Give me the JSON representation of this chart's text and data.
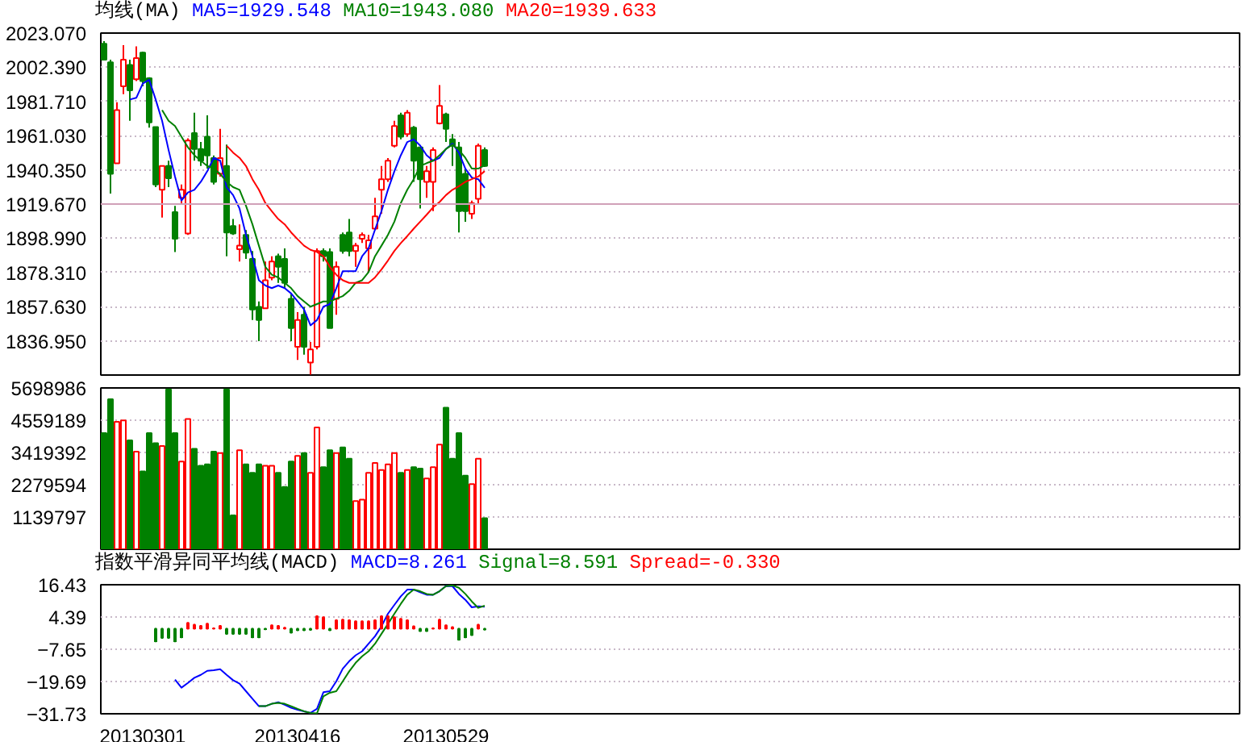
{
  "chart_data": [
    {
      "type": "candlestick",
      "title": "均线(MA)",
      "legend": "top",
      "grid": "y",
      "tick_labels": "y",
      "categories": [
        null,
        null,
        null,
        null,
        null,
        null,
        "20130301",
        null,
        null,
        null,
        null,
        null,
        null,
        null,
        null,
        null,
        null,
        null,
        null,
        null,
        null,
        null,
        null,
        null,
        null,
        null,
        null,
        null,
        null,
        null,
        "20130416",
        null,
        null,
        null,
        null,
        null,
        null,
        null,
        null,
        null,
        null,
        null,
        null,
        null,
        null,
        null,
        null,
        null,
        null,
        null,
        null,
        null,
        null,
        "20130529",
        null,
        null,
        null,
        null,
        null,
        null
      ],
      "ohlc": [
        [
          2016.6,
          2018.2,
          2007.0,
          2007.0
        ],
        [
          2005.4,
          2007.0,
          1926.0,
          1937.9
        ],
        [
          1944.3,
          1981.3,
          1944.3,
          1976.5
        ],
        [
          1990.9,
          2015.7,
          1986.1,
          2007.0
        ],
        [
          2003.8,
          2007.0,
          1970.0,
          1988.4
        ],
        [
          1995.1,
          2015.0,
          1994.1,
          2008.0
        ],
        [
          2011.2,
          2011.8,
          1990.9,
          1994.1
        ],
        [
          1995.8,
          1996.4,
          1965.9,
          1969.1
        ],
        [
          1966.2,
          1966.2,
          1929.9,
          1931.5
        ],
        [
          1928.3,
          1942.7,
          1911.5,
          1942.7
        ],
        [
          1942.7,
          1945.9,
          1929.9,
          1935.3
        ],
        [
          1914.8,
          1918.6,
          1890.6,
          1898.7
        ],
        [
          1923.4,
          1931.5,
          1920.2,
          1928.3
        ],
        [
          1901.9,
          1959.4,
          1901.0,
          1958.1
        ],
        [
          1962.6,
          1974.9,
          1945.9,
          1953.0
        ],
        [
          1953.0,
          1957.2,
          1942.7,
          1945.9
        ],
        [
          1960.4,
          1973.3,
          1941.1,
          1949.1
        ],
        [
          1947.5,
          1949.1,
          1931.5,
          1933.1
        ],
        [
          1937.9,
          1965.2,
          1936.3,
          1947.5
        ],
        [
          1942.7,
          1955.6,
          1888.1,
          1902.5
        ],
        [
          1906.4,
          1910.6,
          1901.0,
          1901.9
        ],
        [
          1892.3,
          1907.4,
          1884.9,
          1894.5
        ],
        [
          1901.0,
          1903.9,
          1886.5,
          1890.3
        ],
        [
          1886.5,
          1891.3,
          1849.5,
          1855.9
        ],
        [
          1857.5,
          1860.8,
          1836.7,
          1849.5
        ],
        [
          1856.6,
          1884.9,
          1856.6,
          1873.6
        ],
        [
          1875.2,
          1888.1,
          1873.6,
          1884.9
        ],
        [
          1888.1,
          1889.7,
          1872.0,
          1881.7
        ],
        [
          1886.5,
          1892.9,
          1868.8,
          1872.0
        ],
        [
          1862.4,
          1865.2,
          1836.7,
          1844.7
        ],
        [
          1833.4,
          1854.3,
          1825.4,
          1849.5
        ],
        [
          1852.7,
          1857.5,
          1828.6,
          1833.4
        ],
        [
          1823.8,
          1836.3,
          1816.5,
          1831.8
        ],
        [
          1833.4,
          1892.9,
          1831.8,
          1891.3
        ],
        [
          1891.3,
          1892.9,
          1884.9,
          1888.1
        ],
        [
          1890.6,
          1892.9,
          1844.7,
          1844.7
        ],
        [
          1862.4,
          1884.9,
          1852.7,
          1881.7
        ],
        [
          1901.0,
          1902.5,
          1889.7,
          1891.3
        ],
        [
          1902.5,
          1910.6,
          1888.1,
          1891.3
        ],
        [
          1891.3,
          1896.1,
          1881.7,
          1894.5
        ],
        [
          1898.7,
          1902.5,
          1896.1,
          1901.0
        ],
        [
          1892.9,
          1901.0,
          1878.5,
          1897.7
        ],
        [
          1904.8,
          1923.4,
          1903.9,
          1912.2
        ],
        [
          1928.3,
          1942.7,
          1913.8,
          1934.7
        ],
        [
          1934.7,
          1947.5,
          1933.1,
          1945.9
        ],
        [
          1954.9,
          1970.0,
          1953.9,
          1966.8
        ],
        [
          1973.3,
          1974.9,
          1958.8,
          1960.4
        ],
        [
          1962.0,
          1976.5,
          1960.4,
          1974.9
        ],
        [
          1965.9,
          1966.8,
          1933.1,
          1945.9
        ],
        [
          1953.9,
          1953.9,
          1917.0,
          1934.7
        ],
        [
          1933.1,
          1942.7,
          1923.4,
          1939.5
        ],
        [
          1933.1,
          1953.9,
          1915.4,
          1952.4
        ],
        [
          1968.4,
          1991.6,
          1967.8,
          1979.0
        ],
        [
          1973.9,
          1974.9,
          1957.2,
          1965.2
        ],
        [
          1958.8,
          1962.0,
          1942.7,
          1954.9
        ],
        [
          1953.9,
          1957.2,
          1902.5,
          1915.4
        ],
        [
          1937.9,
          1941.1,
          1909.0,
          1915.4
        ],
        [
          1913.8,
          1921.8,
          1910.6,
          1920.2
        ],
        [
          1922.8,
          1956.2,
          1920.2,
          1954.9
        ],
        [
          1952.4,
          1953.9,
          1942.1,
          1942.7
        ]
      ],
      "colors": [
        "#008000",
        "#008000",
        "#ff0000",
        "#ff0000",
        "#008000",
        "#ff0000",
        "#008000",
        "#008000",
        "#008000",
        "#ff0000",
        "#008000",
        "#008000",
        "#ff0000",
        "#ff0000",
        "#008000",
        "#008000",
        "#008000",
        "#008000",
        "#ff0000",
        "#008000",
        "#008000",
        "#ff0000",
        "#008000",
        "#008000",
        "#008000",
        "#ff0000",
        "#ff0000",
        "#008000",
        "#008000",
        "#008000",
        "#ff0000",
        "#008000",
        "#ff0000",
        "#ff0000",
        "#008000",
        "#008000",
        "#ff0000",
        "#008000",
        "#008000",
        "#ff0000",
        "#ff0000",
        "#ff0000",
        "#ff0000",
        "#ff0000",
        "#ff0000",
        "#ff0000",
        "#008000",
        "#ff0000",
        "#008000",
        "#008000",
        "#ff0000",
        "#ff0000",
        "#ff0000",
        "#008000",
        "#008000",
        "#008000",
        "#008000",
        "#ff0000",
        "#ff0000",
        "#008000"
      ],
      "series": [
        {
          "name": "MA5=1929.548",
          "type": "line",
          "color": "#0000ff",
          "values": [
            null,
            null,
            null,
            null,
            1982.9,
            1983.9,
            1992.5,
            1994.8,
            1982.9,
            1970.0,
            1952.4,
            1936.3,
            1921.8,
            1926.7,
            1928.3,
            1933.1,
            1939.5,
            1947.6,
            1945.9,
            1929.9,
            1925.1,
            1917.0,
            1901.0,
            1888.1,
            1873.6,
            1870.4,
            1868.8,
            1870.4,
            1868.8,
            1865.6,
            1860.8,
            1856.0,
            1846.3,
            1849.5,
            1857.6,
            1859.2,
            1868.8,
            1879.1,
            1879.1,
            1879.1,
            1888.1,
            1892.9,
            1904.2,
            1915.4,
            1928.3,
            1939.5,
            1949.2,
            1957.2,
            1958.8,
            1955.0,
            1949.2,
            1945.9,
            1947.6,
            1953.0,
            1956.2,
            1950.8,
            1941.1,
            1935.7,
            1934.7,
            1929.5
          ]
        },
        {
          "name": "MA10=1943.080",
          "type": "line",
          "color": "#008000",
          "values": [
            null,
            null,
            null,
            null,
            null,
            null,
            null,
            null,
            null,
            1976.5,
            1970.0,
            1966.9,
            1960.4,
            1954.0,
            1949.2,
            1945.9,
            1942.7,
            1941.1,
            1937.9,
            1933.1,
            1929.9,
            1928.3,
            1918.6,
            1907.4,
            1894.5,
            1881.7,
            1876.9,
            1875.3,
            1872.0,
            1868.8,
            1864.0,
            1860.8,
            1857.6,
            1859.2,
            1860.8,
            1860.8,
            1862.4,
            1864.0,
            1867.2,
            1872.0,
            1873.6,
            1878.5,
            1888.1,
            1894.5,
            1901.0,
            1909.0,
            1920.3,
            1928.3,
            1934.7,
            1942.7,
            1944.4,
            1945.9,
            1949.2,
            1953.0,
            1955.6,
            1952.4,
            1947.6,
            1941.1,
            1941.1,
            1943.1
          ]
        },
        {
          "name": "MA20=1939.633",
          "type": "line",
          "color": "#ff0000",
          "values": [
            null,
            null,
            null,
            null,
            null,
            null,
            null,
            null,
            null,
            null,
            null,
            null,
            null,
            null,
            null,
            null,
            null,
            null,
            null,
            1955.0,
            1950.8,
            1947.6,
            1942.7,
            1934.7,
            1928.3,
            1920.3,
            1915.4,
            1910.6,
            1907.4,
            1902.5,
            1898.4,
            1894.5,
            1892.0,
            1890.7,
            1888.1,
            1881.7,
            1876.9,
            1873.6,
            1872.0,
            1872.0,
            1872.0,
            1872.0,
            1875.3,
            1880.1,
            1885.5,
            1891.3,
            1896.1,
            1900.3,
            1904.8,
            1909.0,
            1913.2,
            1917.7,
            1920.9,
            1925.1,
            1928.3,
            1930.5,
            1933.1,
            1934.7,
            1936.3,
            1939.6
          ]
        }
      ],
      "ylim": [
        1816.27,
        2023.07
      ],
      "yticks": [
        {
          "value": 1836.95,
          "label": "1836.950"
        },
        {
          "value": 1857.63,
          "label": "1857.630"
        },
        {
          "value": 1878.31,
          "label": "1878.310"
        },
        {
          "value": 1898.99,
          "label": "1898.990"
        },
        {
          "value": 1919.67,
          "label": "1919.670"
        },
        {
          "value": 1940.35,
          "label": "1940.350"
        },
        {
          "value": 1961.03,
          "label": "1961.030"
        },
        {
          "value": 1981.71,
          "label": "1981.710"
        },
        {
          "value": 2002.39,
          "label": "2002.390"
        },
        {
          "value": 2023.07,
          "label": "2023.070"
        }
      ],
      "ref_lines": [
        {
          "axis": "y",
          "value": 1919.67,
          "color": "#d0a0b8"
        }
      ]
    },
    {
      "type": "bar",
      "grid": "y",
      "tick_labels": "y",
      "categories": [
        null,
        null,
        null,
        null,
        null,
        null,
        "20130301",
        null,
        null,
        null,
        null,
        null,
        null,
        null,
        null,
        null,
        null,
        null,
        null,
        null,
        null,
        null,
        null,
        null,
        null,
        null,
        null,
        null,
        null,
        null,
        "20130416",
        null,
        null,
        null,
        null,
        null,
        null,
        null,
        null,
        null,
        null,
        null,
        null,
        null,
        null,
        null,
        null,
        null,
        null,
        null,
        null,
        null,
        null,
        "20130529",
        null,
        null,
        null,
        null,
        null,
        null
      ],
      "values": [
        4100000,
        5300000,
        4500000,
        4550000,
        3850000,
        3450000,
        2750000,
        4100000,
        3750000,
        3650000,
        5650000,
        4100000,
        3100000,
        4600000,
        3550000,
        2950000,
        3000000,
        3450000,
        3400000,
        5650000,
        1200000,
        3500000,
        3000000,
        2700000,
        3000000,
        2950000,
        2950000,
        2700000,
        2200000,
        3100000,
        3300000,
        3400000,
        2700000,
        4300000,
        2900000,
        3500000,
        3400000,
        3600000,
        3200000,
        1700000,
        1750000,
        2700000,
        3050000,
        2800000,
        3000000,
        3400000,
        2700000,
        2800000,
        2900000,
        2850000,
        2500000,
        2900000,
        3700000,
        5000000,
        3200000,
        4100000,
        2600000,
        2300000,
        3200000,
        1100000
      ],
      "colors": [
        "#008000",
        "#008000",
        "#ff0000",
        "#ff0000",
        "#008000",
        "#ff0000",
        "#008000",
        "#008000",
        "#008000",
        "#ff0000",
        "#008000",
        "#008000",
        "#ff0000",
        "#ff0000",
        "#008000",
        "#008000",
        "#008000",
        "#008000",
        "#ff0000",
        "#008000",
        "#008000",
        "#ff0000",
        "#008000",
        "#008000",
        "#008000",
        "#ff0000",
        "#ff0000",
        "#008000",
        "#008000",
        "#008000",
        "#ff0000",
        "#008000",
        "#ff0000",
        "#ff0000",
        "#008000",
        "#008000",
        "#ff0000",
        "#008000",
        "#008000",
        "#ff0000",
        "#ff0000",
        "#ff0000",
        "#ff0000",
        "#ff0000",
        "#ff0000",
        "#ff0000",
        "#008000",
        "#ff0000",
        "#008000",
        "#008000",
        "#ff0000",
        "#ff0000",
        "#ff0000",
        "#008000",
        "#008000",
        "#008000",
        "#008000",
        "#ff0000",
        "#ff0000",
        "#008000"
      ],
      "ylim": [
        0,
        5698986
      ],
      "yticks": [
        {
          "value": 1139797,
          "label": "1139797"
        },
        {
          "value": 2279594,
          "label": "2279594"
        },
        {
          "value": 3419392,
          "label": "3419392"
        },
        {
          "value": 4559189,
          "label": "4559189"
        },
        {
          "value": 5698986,
          "label": "5698986"
        }
      ]
    },
    {
      "type": "line",
      "title": "指数平滑异同平均线(MACD)",
      "legend": "top",
      "grid": "y",
      "categories": [
        null,
        null,
        null,
        null,
        null,
        null,
        "20130301",
        null,
        null,
        null,
        null,
        null,
        null,
        null,
        null,
        null,
        null,
        null,
        null,
        null,
        null,
        null,
        null,
        null,
        null,
        null,
        null,
        null,
        null,
        null,
        "20130416",
        null,
        null,
        null,
        null,
        null,
        null,
        null,
        null,
        null,
        null,
        null,
        null,
        null,
        null,
        null,
        null,
        null,
        null,
        null,
        null,
        null,
        null,
        "20130529",
        null,
        null,
        null,
        null,
        null,
        null
      ],
      "series": [
        {
          "name": "MACD=8.261",
          "type": "line",
          "color": "#0000ff",
          "values": [
            null,
            null,
            null,
            null,
            null,
            null,
            null,
            null,
            null,
            null,
            null,
            -19.0,
            -22.0,
            -20.2,
            -18.3,
            -17.2,
            -15.7,
            -15.5,
            -15.1,
            -17.2,
            -19.2,
            -20.5,
            -23.3,
            -26.1,
            -28.9,
            -28.9,
            -28.0,
            -27.4,
            -28.4,
            -29.5,
            -30.2,
            -30.8,
            -31.4,
            -29.9,
            -23.7,
            -23.3,
            -19.6,
            -14.9,
            -12.1,
            -9.9,
            -8.4,
            -5.6,
            -2.8,
            0.9,
            5.6,
            8.9,
            12.1,
            14.6,
            14.6,
            13.6,
            12.7,
            12.7,
            14.0,
            16.0,
            15.9,
            13.0,
            10.8,
            8.0,
            8.4,
            8.261
          ]
        },
        {
          "name": "Signal=8.591",
          "type": "line",
          "color": "#008000",
          "values": [
            null,
            null,
            null,
            null,
            null,
            null,
            null,
            null,
            null,
            null,
            null,
            null,
            null,
            null,
            null,
            null,
            null,
            null,
            null,
            null,
            null,
            null,
            null,
            null,
            -28.9,
            -28.9,
            -28.0,
            -27.7,
            -28.0,
            -28.9,
            -29.9,
            -30.8,
            -31.4,
            -31.6,
            -25.2,
            -23.9,
            -23.3,
            -19.6,
            -15.9,
            -12.7,
            -10.3,
            -8.4,
            -5.6,
            -1.9,
            1.8,
            5.6,
            9.3,
            12.7,
            14.6,
            14.0,
            13.0,
            12.7,
            14.0,
            15.9,
            16.2,
            15.3,
            13.0,
            10.2,
            7.8,
            8.591
          ]
        },
        {
          "name": "Spread=-0.330",
          "type": "bar",
          "color": "#ff0000",
          "values": [
            null,
            null,
            null,
            null,
            null,
            null,
            null,
            null,
            -4.7,
            -3.4,
            -3.4,
            -4.7,
            -3.2,
            2.2,
            1.5,
            1.1,
            1.9,
            0.2,
            1.1,
            -1.9,
            -1.9,
            -1.9,
            -1.9,
            -3.2,
            -3.2,
            -0.2,
            1.3,
            1.1,
            0.4,
            -1.5,
            -0.6,
            -0.6,
            -0.4,
            4.7,
            4.3,
            -0.6,
            3.2,
            3.4,
            3.2,
            2.8,
            2.8,
            2.8,
            3.2,
            4.7,
            4.7,
            4.3,
            3.7,
            3.2,
            0.9,
            -0.9,
            -0.9,
            0.2,
            3.4,
            1.3,
            0.6,
            -4.1,
            -3.2,
            -2.4,
            1.5,
            -0.33
          ],
          "colors": [
            "#008000",
            "#008000",
            "#008000",
            "#008000",
            "#008000",
            "#008000",
            "#008000",
            "#008000",
            "#008000",
            "#008000",
            "#008000",
            "#008000",
            "#008000",
            "#ff0000",
            "#ff0000",
            "#ff0000",
            "#ff0000",
            "#ff0000",
            "#ff0000",
            "#008000",
            "#008000",
            "#008000",
            "#008000",
            "#008000",
            "#008000",
            "#008000",
            "#ff0000",
            "#ff0000",
            "#ff0000",
            "#008000",
            "#008000",
            "#008000",
            "#008000",
            "#ff0000",
            "#ff0000",
            "#008000",
            "#ff0000",
            "#ff0000",
            "#ff0000",
            "#ff0000",
            "#ff0000",
            "#ff0000",
            "#ff0000",
            "#ff0000",
            "#ff0000",
            "#ff0000",
            "#ff0000",
            "#ff0000",
            "#ff0000",
            "#008000",
            "#008000",
            "#ff0000",
            "#ff0000",
            "#ff0000",
            "#ff0000",
            "#008000",
            "#008000",
            "#008000",
            "#ff0000",
            "#008000"
          ]
        }
      ],
      "ylim": [
        -31.73,
        16.43
      ],
      "yticks": [
        -31.73,
        -19.69,
        -7.65,
        4.39,
        16.43
      ]
    }
  ]
}
